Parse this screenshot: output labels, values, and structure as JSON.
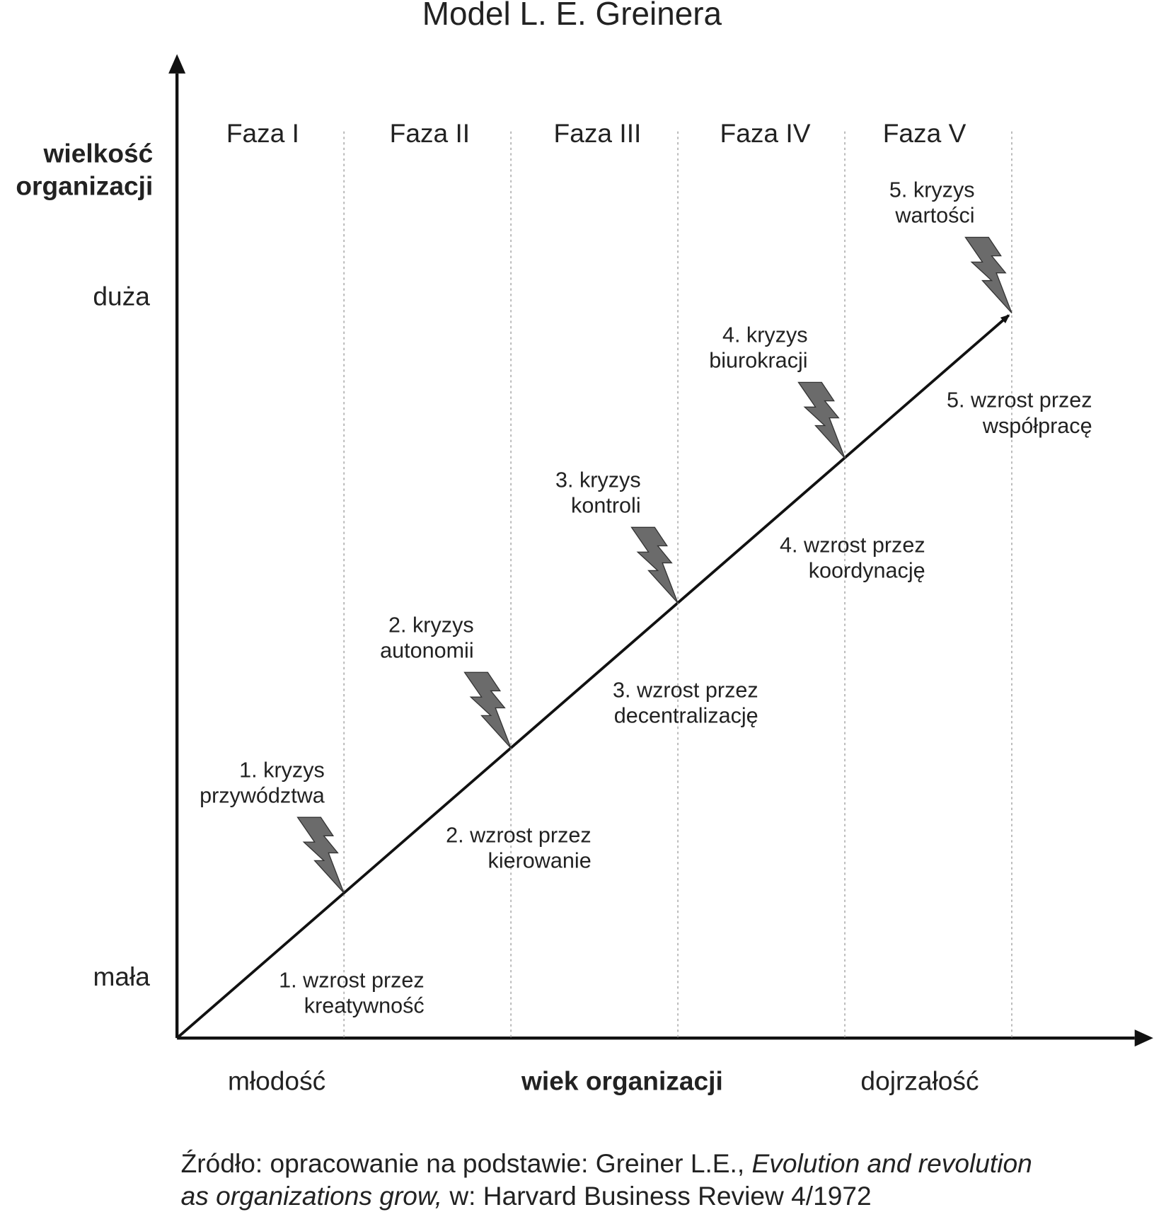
{
  "title": "Model L. E. Greinera",
  "y_axis": {
    "label": [
      "wielkość",
      "organizacji"
    ],
    "top": "duża",
    "bottom": "mała"
  },
  "x_axis": {
    "label": "wiek organizacji",
    "start": "młodość",
    "end": "dojrzałość"
  },
  "phases": [
    "Faza I",
    "Faza II",
    "Faza III",
    "Faza IV",
    "Faza V"
  ],
  "crises": [
    [
      "1. kryzys",
      "przywództwa"
    ],
    [
      "2. kryzys",
      "autonomii"
    ],
    [
      "3. kryzys",
      "kontroli"
    ],
    [
      "4. kryzys",
      "biurokracji"
    ],
    [
      "5. kryzys",
      "wartości"
    ]
  ],
  "growth": [
    [
      "1. wzrost przez",
      "kreatywność"
    ],
    [
      "2. wzrost przez",
      "kierowanie"
    ],
    [
      "3. wzrost przez",
      "decentralizację"
    ],
    [
      "4. wzrost przez",
      "koordynację"
    ],
    [
      "5. wzrost przez",
      "współpracę"
    ]
  ],
  "source": {
    "line1": [
      "Źródło: opracowanie na podstawie: Greiner L.E., ",
      "Evolution and revolution"
    ],
    "line2": [
      "as organizations grow,",
      " w: Harvard Business Review 4/1972"
    ]
  }
}
